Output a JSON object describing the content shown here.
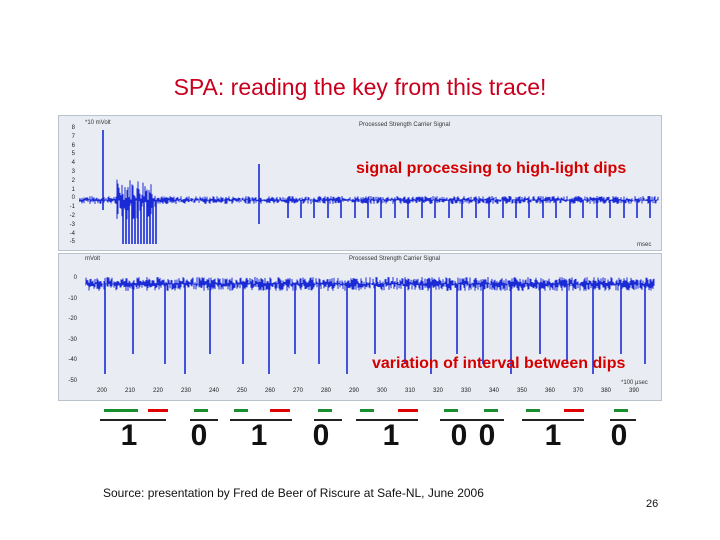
{
  "slide": {
    "title": "SPA: reading the key from this trace!",
    "source": "Source: presentation by Fred de Beer of Riscure at Safe-NL, June 2006",
    "page_number": "26"
  },
  "panel1": {
    "unit": "*10 mVolt",
    "plot_title": "Processed Strength Carrier Signal",
    "callout": "signal processing to high-light dips",
    "corner_label": "msec",
    "y_ticks": [
      "8",
      "7",
      "6",
      "5",
      "4",
      "3",
      "2",
      "1",
      "0",
      "-1",
      "-2",
      "-3",
      "-4",
      "-5"
    ]
  },
  "panel2": {
    "unit": "mVolt",
    "plot_title": "Processed Strength Carrier Signal",
    "callout": "variation of interval between dips",
    "x_unit": "*100 µsec",
    "y_ticks": [
      "0",
      "-10",
      "-20",
      "-30",
      "-40",
      "-50"
    ],
    "x_ticks": [
      "200",
      "210",
      "220",
      "230",
      "240",
      "250",
      "260",
      "270",
      "280",
      "290",
      "300",
      "310",
      "320",
      "330",
      "340",
      "350",
      "360",
      "370",
      "380",
      "390"
    ]
  },
  "bits": [
    "1",
    "0",
    "1",
    "0",
    "1",
    "0",
    "0",
    "1",
    "0"
  ],
  "colors": {
    "title": "#c8001e",
    "trace": "#1a2bd6",
    "callout": "#d40000",
    "short_dash": "#1a8f2e",
    "long_dash": "#e00000"
  }
}
